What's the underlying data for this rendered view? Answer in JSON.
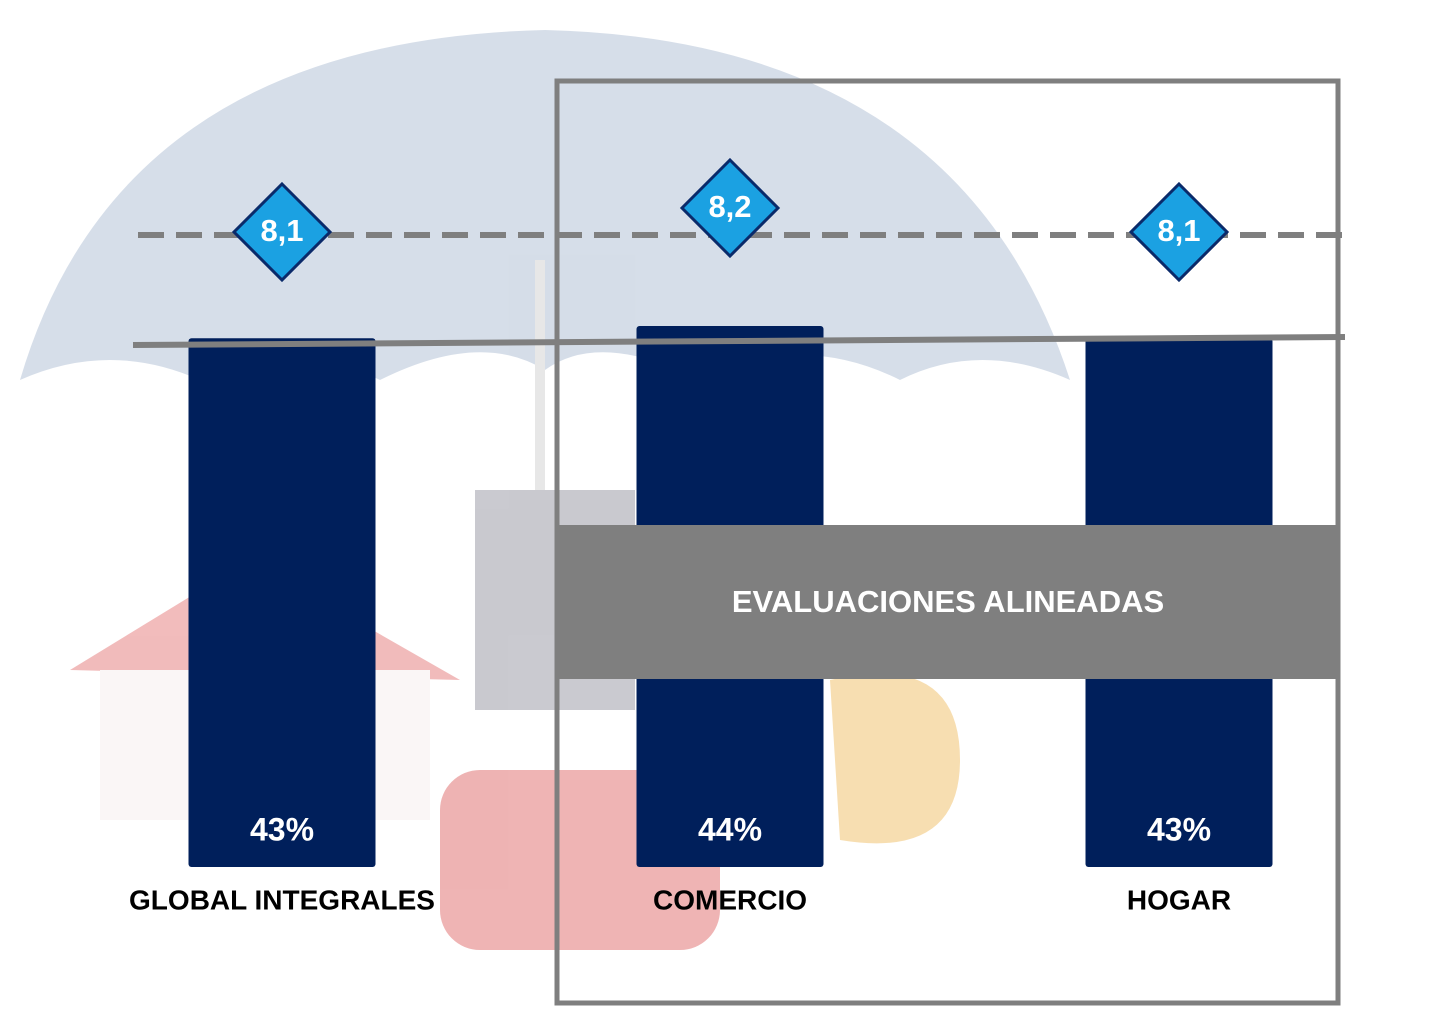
{
  "chart_data": {
    "type": "bar",
    "categories": [
      "GLOBAL INTEGRALES",
      "COMERCIO",
      "HOGAR"
    ],
    "values": [
      43,
      44,
      43
    ],
    "value_labels": [
      "43%",
      "44%",
      "43%"
    ],
    "color": "#001f5b",
    "ylim": [
      0,
      44
    ],
    "scores": {
      "values": [
        8.1,
        8.2,
        8.1
      ],
      "value_labels": [
        "8,1",
        "8,2",
        "8,1"
      ],
      "color": "#1ba1e2",
      "axis": "y2"
    },
    "y2lim": [
      7.2,
      8.6
    ],
    "annotation": "EVALUACIONES ALINEADAS"
  }
}
